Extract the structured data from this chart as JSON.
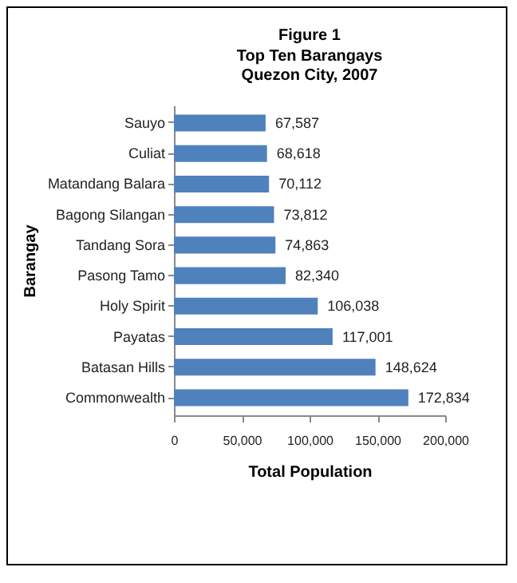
{
  "chart_data": {
    "type": "bar",
    "orientation": "horizontal",
    "title": "Figure 1",
    "subtitle": "Top Ten Barangays",
    "annotations": [
      "Quezon City, 2007"
    ],
    "xlabel": "Total Population",
    "ylabel": "Barangay",
    "categories": [
      "Sauyo",
      "Culiat",
      "Matandang Balara",
      "Bagong Silangan",
      "Tandang Sora",
      "Pasong Tamo",
      "Holy Spirit",
      "Payatas",
      "Batasan Hills",
      "Commonwealth"
    ],
    "values": [
      67587,
      68618,
      70112,
      73812,
      74863,
      82340,
      106038,
      117001,
      148624,
      172834
    ],
    "value_labels": [
      "67,587",
      "68,618",
      "70,112",
      "73,812",
      "74,863",
      "82,340",
      "106,038",
      "117,001",
      "148,624",
      "172,834"
    ],
    "color": "#4f81bd",
    "xlim": [
      0,
      200000
    ],
    "xticks": [
      0,
      {
        "value": 50000,
        "label": "50,000"
      },
      {
        "value": 100000,
        "label": "100,000"
      },
      {
        "value": 150000,
        "label": "150,000"
      },
      {
        "value": 200000,
        "label": "200,000"
      }
    ],
    "grid": false
  }
}
